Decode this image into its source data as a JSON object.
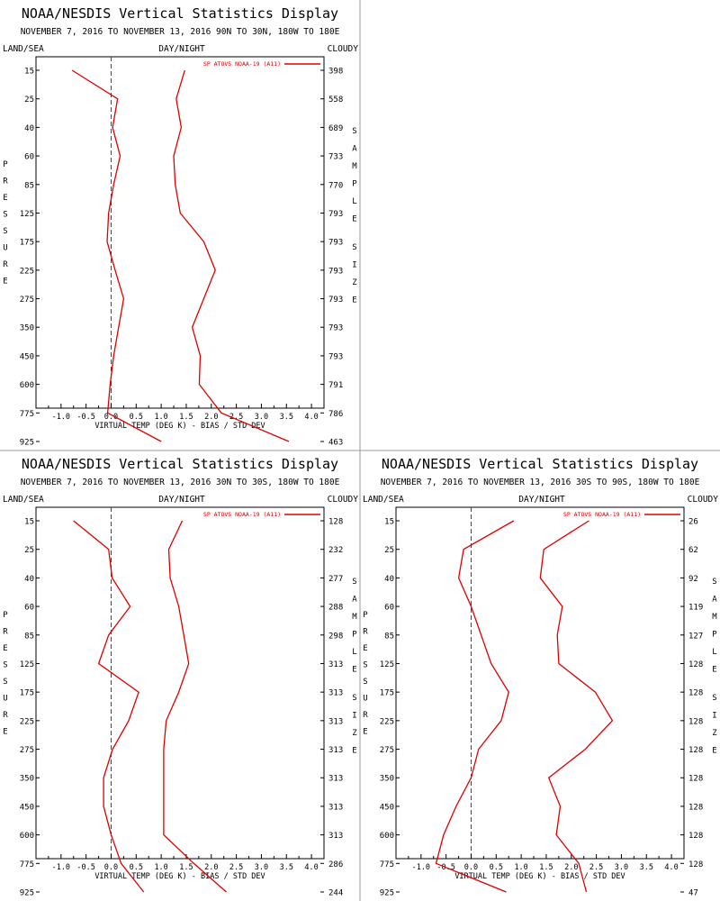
{
  "panel_title": "NOAA/NESDIS Vertical Statistics Display",
  "header_labels": {
    "left": "LAND/SEA",
    "center": "DAY/NIGHT",
    "right": "CLOUDY"
  },
  "y_axis_label": "PRESSURE",
  "right_axis_label": "SAMPLE SIZE",
  "x_axis_label": "VIRTUAL TEMP (DEG K) - BIAS / STD DEV",
  "legend_label": "SP ATOVS NOAA-19 (A11)",
  "colors": {
    "series": "#dd0000",
    "text": "#000000",
    "zero_line": "#334466",
    "frame": "#999999"
  },
  "chart_data": [
    {
      "type": "line",
      "subtitle": "NOVEMBER 7, 2016 TO NOVEMBER 13, 2016 90N TO 30N, 180W TO 180E",
      "xlim": [
        -1.5,
        4.25
      ],
      "x_ticks": [
        "-1.0",
        "-0.5",
        "0.0",
        "0.5",
        "1.0",
        "1.5",
        "2.0",
        "2.5",
        "3.0",
        "3.5",
        "4.0"
      ],
      "pressure_levels": [
        "15",
        "25",
        "40",
        "60",
        "85",
        "125",
        "175",
        "225",
        "275",
        "350",
        "450",
        "600",
        "775",
        "925"
      ],
      "sample_size": [
        "398",
        "558",
        "689",
        "733",
        "770",
        "793",
        "793",
        "793",
        "793",
        "793",
        "793",
        "791",
        "786",
        "463"
      ],
      "bias": [
        -0.78,
        0.13,
        0.03,
        0.18,
        0.05,
        -0.05,
        -0.08,
        0.08,
        0.25,
        0.15,
        0.05,
        -0.02,
        -0.07,
        1.0
      ],
      "std_dev": [
        1.47,
        1.3,
        1.4,
        1.25,
        1.28,
        1.38,
        1.85,
        2.08,
        1.85,
        1.62,
        1.78,
        1.76,
        2.2,
        3.55
      ]
    },
    {
      "type": "line",
      "subtitle": "NOVEMBER 7, 2016 TO NOVEMBER 13, 2016 30N TO 30S, 180W TO 180E",
      "xlim": [
        -1.5,
        4.25
      ],
      "x_ticks": [
        "-1.0",
        "-0.5",
        "0.0",
        "0.5",
        "1.0",
        "1.5",
        "2.0",
        "2.5",
        "3.0",
        "3.5",
        "4.0"
      ],
      "pressure_levels": [
        "15",
        "25",
        "40",
        "60",
        "85",
        "125",
        "175",
        "225",
        "275",
        "350",
        "450",
        "600",
        "775",
        "925"
      ],
      "sample_size": [
        "128",
        "232",
        "277",
        "288",
        "298",
        "313",
        "313",
        "313",
        "313",
        "313",
        "313",
        "313",
        "286",
        "244"
      ],
      "bias": [
        -0.75,
        -0.05,
        0.02,
        0.38,
        -0.05,
        -0.25,
        0.55,
        0.35,
        0.03,
        -0.15,
        -0.15,
        0.0,
        0.2,
        0.65
      ],
      "std_dev": [
        1.42,
        1.15,
        1.18,
        1.35,
        1.45,
        1.55,
        1.35,
        1.1,
        1.05,
        1.05,
        1.05,
        1.05,
        1.65,
        2.3
      ]
    },
    {
      "type": "line",
      "subtitle": "NOVEMBER 7, 2016 TO NOVEMBER 13, 2016 30S TO 90S, 180W TO 180E",
      "xlim": [
        -1.5,
        4.25
      ],
      "x_ticks": [
        "-1.0",
        "-0.5",
        "0.0",
        "0.5",
        "1.0",
        "1.5",
        "2.0",
        "2.5",
        "3.0",
        "3.5",
        "4.0"
      ],
      "pressure_levels": [
        "15",
        "25",
        "40",
        "60",
        "85",
        "125",
        "175",
        "225",
        "275",
        "350",
        "450",
        "600",
        "775",
        "925"
      ],
      "sample_size": [
        "26",
        "62",
        "92",
        "119",
        "127",
        "128",
        "128",
        "128",
        "128",
        "128",
        "128",
        "128",
        "128",
        "47"
      ],
      "bias": [
        0.85,
        -0.15,
        -0.25,
        0.0,
        0.2,
        0.4,
        0.75,
        0.6,
        0.15,
        0.0,
        -0.3,
        -0.55,
        -0.7,
        0.7
      ],
      "std_dev": [
        2.35,
        1.45,
        1.38,
        1.82,
        1.72,
        1.75,
        2.48,
        2.82,
        2.28,
        1.55,
        1.78,
        1.7,
        2.15,
        2.3
      ]
    }
  ]
}
